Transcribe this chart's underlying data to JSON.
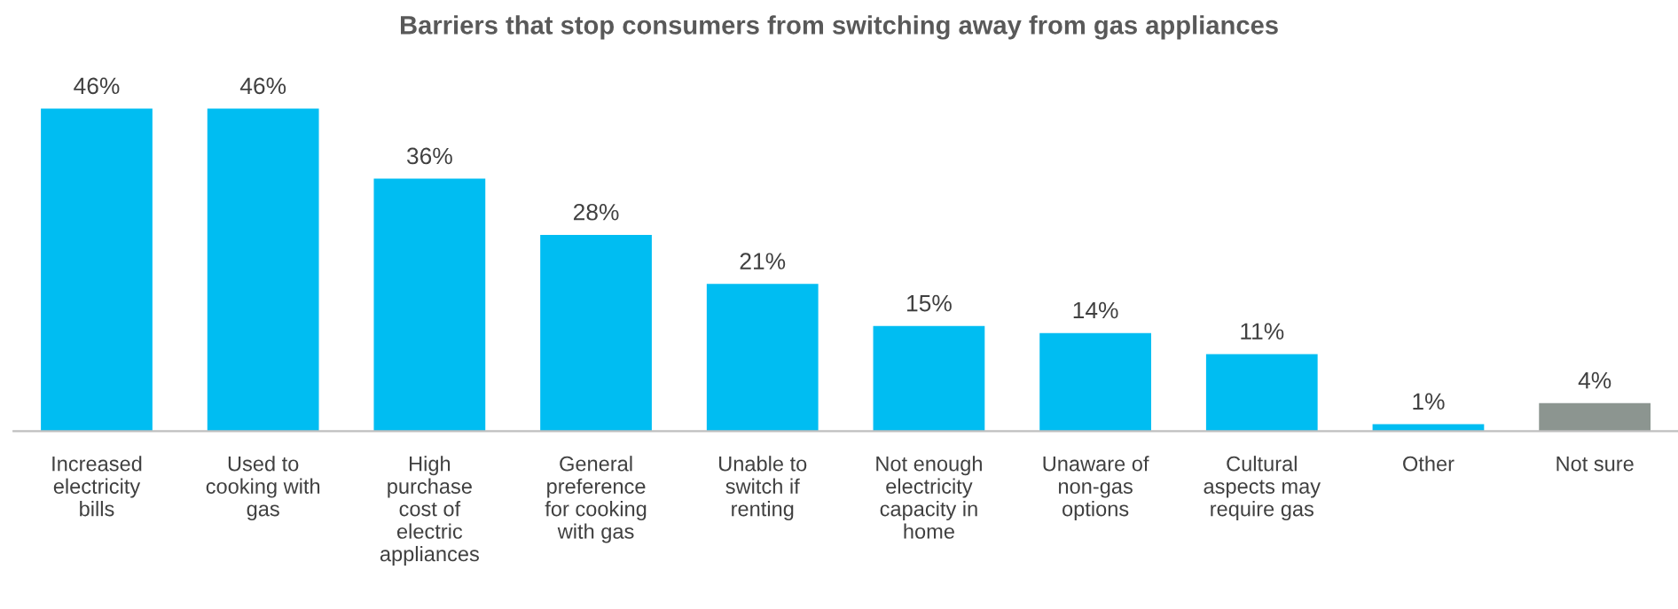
{
  "chart_data": {
    "type": "bar",
    "title": "Barriers that stop consumers from switching away from gas appliances",
    "categories": [
      "Increased\nelectricity\nbills",
      "Used to\ncooking with\ngas",
      "High\npurchase\ncost of\nelectric\nappliances",
      "General\npreference\nfor cooking\nwith gas",
      "Unable to\nswitch if\nrenting",
      "Not enough\nelectricity\ncapacity in\nhome",
      "Unaware of\nnon-gas\noptions",
      "Cultural\naspects may\nrequire gas",
      "Other",
      "Not sure"
    ],
    "values": [
      46,
      46,
      36,
      28,
      21,
      15,
      14,
      11,
      1,
      4
    ],
    "value_labels": [
      "46%",
      "46%",
      "36%",
      "28%",
      "21%",
      "15%",
      "14%",
      "11%",
      "1%",
      "4%"
    ],
    "colors": [
      "#00bdf2",
      "#00bdf2",
      "#00bdf2",
      "#00bdf2",
      "#00bdf2",
      "#00bdf2",
      "#00bdf2",
      "#00bdf2",
      "#00bdf2",
      "#8c9590"
    ]
  }
}
